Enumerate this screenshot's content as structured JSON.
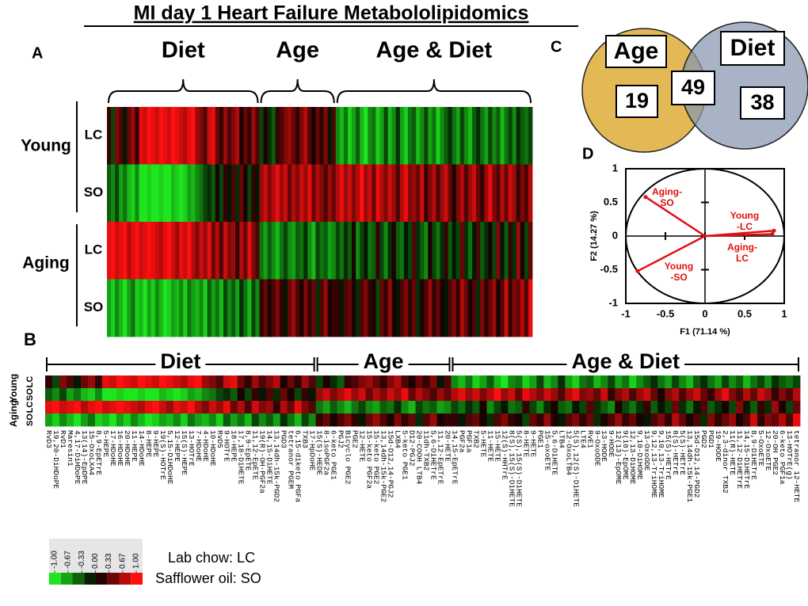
{
  "title": "MI day 1 Heart Failure Metabololipidomics",
  "panels": [
    "A",
    "B",
    "C",
    "D"
  ],
  "heatmap": {
    "column_groups": [
      {
        "name": "Diet",
        "metabolites": [
          "RvD3",
          "19,20-DiHDoPE",
          "RvD1",
          "Maresin1",
          "4,17-DiHDoPE",
          "13(14)-EpDPE",
          "15-OxoLXA4",
          "8,9-EpETrE",
          "5-HEPE",
          "17-HDoHE",
          "16-HDoHE",
          "20-HDoHE",
          "11-HEPE",
          "14-HDoHE",
          "8-HEPE",
          "9-HEPE",
          "19(S)-HOTrE",
          "5,15-DiHDoHE",
          "12-HEPE",
          "15(S)-HEPE",
          "13-HOTrE",
          "7-HDoHE",
          "4-HDoHE",
          "10-HDoHE",
          "RvD5",
          "9-HOTrE",
          "18-HEPE",
          "17,18-DiHETE",
          "8,9-EpETE",
          "11,12-EpETE",
          "19(R)-OH-PGF2a",
          "14,15-DiHETE",
          "13,14dh-15k-PGD2",
          "PGD3",
          "tetranor PGEM",
          "6,15-diketo PGFa",
          "TXB3",
          "17-HpDoHE"
        ]
      },
      {
        "name": "Age",
        "metabolites": [
          "15(S)-HEDE",
          "8-isoPGF2a",
          "6-keto PGE1",
          "PGJ2",
          "Bicyclo PGE2",
          "PGE2",
          "12-HETE",
          "15-keto PGF2a",
          "15-keto PGE2",
          "13,14dh-15k-PGE2",
          "15d-D12,14-PGJ2",
          "LXB4",
          "5-keto PGE1",
          "D12-PGJ2",
          "20-COOH LTB4",
          "11dh-TXB2",
          "5,6-DiHETrE",
          "11,12-EpETrE",
          "20-HETE"
        ]
      },
      {
        "name": "Age & Diet",
        "metabolites": [
          "14,15-EpETrE",
          "PGF2a",
          "PGF1a",
          "TXB2",
          "5-HETE",
          "11-HETE",
          "15-HETE",
          "12(S)-HHTrE",
          "8(S),15(S)-DiHETE",
          "5(S),15(S)-DiHETE",
          "8-HETE",
          "9-HETE",
          "PGE1",
          "15-oxoETE",
          "5,6-DiHETE",
          "LTB4",
          "12-OxoLTB4",
          "5(S),12(S)-DiHETE",
          "LTE4",
          "RvE1",
          "9-OxoODE",
          "13-HODE",
          "9-HODE",
          "12(13)-EpOME",
          "9(10)-EpOME",
          "12,13-DiHOME",
          "9,10-DiHOME",
          "13-OxoODE",
          "9,12,13-TriHOME",
          "9,10,13-TriHOME",
          "15(S)-HETrE",
          "8(S)-HETrE",
          "5(S)-HETrE",
          "13,14dh-15k-PGE1",
          "15d-D12,14-PGD2",
          "PGD2",
          "PGD1",
          "19-HODE",
          "2,3-dinor TXB2",
          "11(R)-HETE",
          "11,12-DiHETrE",
          "14,15-DiHETrE",
          "8,9-DiHETrE",
          "5-OxoETE",
          "12-OxoETE",
          "20-OH PGE2",
          "6-keto PGF1a",
          "13-HOTrE(g)",
          "tetranor 12-HETE"
        ]
      }
    ],
    "groups": [
      {
        "name": "Young",
        "rows": [
          {
            "name": "LC",
            "values": [
              0.2,
              -0.3,
              0.5,
              0.3,
              -0.1,
              0.4,
              0.6,
              0.2,
              0.9,
              0.8,
              1.0,
              0.9,
              0.8,
              1.0,
              0.9,
              0.8,
              1.0,
              0.9,
              0.8,
              0.7,
              0.9,
              1.0,
              0.6,
              0.5,
              0.3,
              0.8,
              0.9,
              0.4,
              0.2,
              0.6,
              0.3,
              0.5,
              0.7,
              0.1,
              0.4,
              0.2,
              0.6,
              0.3,
              -0.3,
              0.1,
              -0.2,
              -0.4,
              0.2,
              0.3,
              0.5,
              0.6,
              0.4,
              0.2,
              0.5,
              0.7,
              0.3,
              0.1,
              0.4,
              0.2,
              0.5,
              -0.1,
              0.3,
              -0.6,
              -0.8,
              -0.5,
              -0.9,
              -0.7,
              -0.4,
              -0.8,
              -1.0,
              -0.6,
              -0.5,
              -0.9,
              -0.7,
              -0.3,
              -0.8,
              -0.6,
              -0.2,
              -0.7,
              -0.9,
              -0.5,
              -0.4,
              -0.8,
              -0.6,
              -0.3,
              -0.7,
              -0.5,
              -0.9,
              -0.6,
              -0.4,
              -0.2,
              -0.5,
              -0.7,
              -0.3,
              -0.6,
              -0.8,
              -0.4,
              -0.2,
              -0.5,
              -0.7,
              -0.3,
              -0.6,
              -0.4,
              -0.8,
              -0.5,
              -0.3,
              -0.6,
              -0.2,
              -0.4,
              -0.5,
              -0.3
            ]
          },
          {
            "name": "SO",
            "values": [
              -0.4,
              -0.6,
              -0.3,
              -0.7,
              -0.5,
              -0.8,
              -0.9,
              -0.6,
              -1.0,
              -1.0,
              -0.9,
              -1.0,
              -1.0,
              -0.9,
              -1.0,
              -1.0,
              -0.8,
              -0.9,
              -1.0,
              -0.9,
              -0.7,
              -0.8,
              -0.6,
              -0.5,
              -0.3,
              -0.2,
              -0.4,
              0.1,
              -0.3,
              0.2,
              -0.1,
              0.3,
              -0.2,
              0.4,
              0.1,
              -0.3,
              0.2,
              -0.1,
              0.6,
              0.8,
              0.5,
              0.7,
              0.9,
              0.6,
              0.8,
              0.4,
              0.7,
              0.5,
              0.8,
              0.6,
              0.9,
              0.4,
              0.7,
              0.5,
              0.3,
              0.6,
              0.4,
              0.7,
              0.9,
              0.6,
              0.8,
              0.5,
              0.7,
              1.0,
              0.6,
              0.8,
              0.4,
              0.9,
              0.7,
              0.5,
              0.8,
              0.6,
              0.3,
              0.7,
              0.9,
              0.5,
              0.6,
              0.4,
              0.8,
              0.2,
              0.5,
              0.7,
              0.3,
              0.6,
              0.8,
              0.4,
              0.1,
              0.5,
              0.7,
              0.3,
              0.6,
              0.8,
              0.4,
              0.2,
              0.6,
              0.9,
              0.5,
              0.3,
              0.7,
              0.4,
              0.8,
              0.6,
              0.2,
              0.5,
              0.3,
              0.7
            ]
          }
        ]
      },
      {
        "name": "Aging",
        "rows": [
          {
            "name": "LC",
            "values": [
              0.9,
              1.0,
              0.8,
              0.9,
              1.0,
              0.7,
              0.9,
              1.0,
              0.8,
              0.9,
              1.0,
              0.9,
              0.8,
              0.7,
              0.9,
              1.0,
              0.8,
              0.6,
              0.9,
              0.8,
              1.0,
              0.7,
              0.5,
              0.8,
              0.6,
              0.9,
              0.4,
              0.7,
              0.3,
              0.8,
              0.5,
              0.6,
              0.2,
              0.7,
              0.4,
              0.9,
              0.5,
              0.3,
              -0.5,
              -0.7,
              -0.4,
              -0.6,
              -0.8,
              -0.5,
              -0.3,
              -0.6,
              -0.7,
              -0.4,
              -0.5,
              -0.2,
              -0.6,
              -0.8,
              -0.3,
              -0.5,
              -0.4,
              -0.7,
              -0.6,
              -0.3,
              -0.5,
              -0.2,
              -0.4,
              0.1,
              -0.6,
              -0.3,
              -0.1,
              -0.5,
              -0.4,
              0.2,
              -0.3,
              -0.6,
              -0.2,
              0.1,
              -0.4,
              -0.5,
              -0.1,
              -0.3,
              0.3,
              -0.2,
              -0.4,
              -0.6,
              0.1,
              -0.3,
              -0.5,
              -0.2,
              0.2,
              -0.4,
              -0.1,
              -0.3,
              0.4,
              -0.2,
              -0.5,
              -0.1,
              0.3,
              -0.4,
              -0.2,
              0.1,
              -0.3,
              0.5,
              -0.1,
              -0.4,
              0.2,
              -0.2,
              0.6,
              0.1,
              -0.3,
              0.4
            ]
          },
          {
            "name": "SO",
            "values": [
              -0.7,
              -0.9,
              -0.6,
              -0.8,
              -1.0,
              -0.7,
              -0.5,
              -0.9,
              -0.8,
              -1.0,
              -0.7,
              -0.9,
              -0.6,
              -0.8,
              -1.0,
              -0.9,
              -0.7,
              -0.8,
              -0.6,
              -0.9,
              -0.5,
              -0.7,
              -0.8,
              -0.6,
              -0.9,
              -0.4,
              -0.7,
              -0.5,
              -0.8,
              -0.3,
              -0.6,
              -0.4,
              -0.7,
              -0.2,
              -0.5,
              -0.8,
              -0.3,
              -0.6,
              0.2,
              0.4,
              0.1,
              0.3,
              0.5,
              0.2,
              -0.1,
              0.4,
              0.6,
              0.3,
              0.1,
              0.5,
              0.2,
              0.4,
              -0.2,
              0.3,
              0.6,
              0.1,
              0.2,
              0.2,
              -0.1,
              0.3,
              0.4,
              0.1,
              -0.2,
              0.3,
              0.5,
              0.2,
              0.1,
              -0.3,
              0.4,
              0.2,
              0.6,
              0.1,
              -0.1,
              0.3,
              0.5,
              0.2,
              0.4,
              -0.2,
              0.1,
              0.3,
              0.6,
              0.2,
              0.4,
              0.1,
              -0.1,
              0.3,
              0.5,
              0.2,
              0.7,
              0.4,
              0.1,
              0.3,
              -0.2,
              0.5,
              0.2,
              0.4,
              0.6,
              0.1,
              0.3,
              0.8,
              0.2,
              0.5,
              0.4,
              0.7,
              0.3,
              0.9
            ]
          }
        ]
      }
    ],
    "color_scale": {
      "low": "#1ee61e",
      "mid": "#000000",
      "high": "#ff1010",
      "ticks": [
        {
          "value": -1,
          "label": "-1.00"
        },
        {
          "value": -0.67,
          "label": "-0.67"
        },
        {
          "value": -0.33,
          "label": "-0.33"
        },
        {
          "value": 0,
          "label": "0.00"
        },
        {
          "value": 0.33,
          "label": "0.33"
        },
        {
          "value": 0.67,
          "label": "0.67"
        },
        {
          "value": 1,
          "label": "1.00"
        }
      ]
    },
    "legend": [
      "Lab chow: LC",
      "Safflower oil: SO"
    ]
  },
  "venn": {
    "sets": [
      {
        "name": "Age",
        "only": 19,
        "color": "#e3b955"
      },
      {
        "name": "Diet",
        "only": 38,
        "color": "#8797b0"
      }
    ],
    "both": 49
  },
  "pca": {
    "xlabel": "F1 (71.14 %)",
    "ylabel": "F2 (14.27 %)",
    "xlim": [
      -1,
      1
    ],
    "ylim": [
      -1,
      1
    ],
    "xticks": [
      -1,
      -0.5,
      0,
      0.5,
      1
    ],
    "yticks": [
      -1,
      -0.5,
      0,
      0.5,
      1
    ],
    "color": "#e01010",
    "vectors": [
      {
        "label": [
          "Aging-",
          "SO"
        ],
        "x": -0.75,
        "y": 0.58
      },
      {
        "label": [
          "Young",
          "-LC"
        ],
        "x": 0.87,
        "y": 0.08
      },
      {
        "label": [
          "Aging-",
          "LC"
        ],
        "x": 0.85,
        "y": 0.03
      },
      {
        "label": [
          "Young",
          "-SO"
        ],
        "x": -0.85,
        "y": -0.52
      }
    ]
  }
}
